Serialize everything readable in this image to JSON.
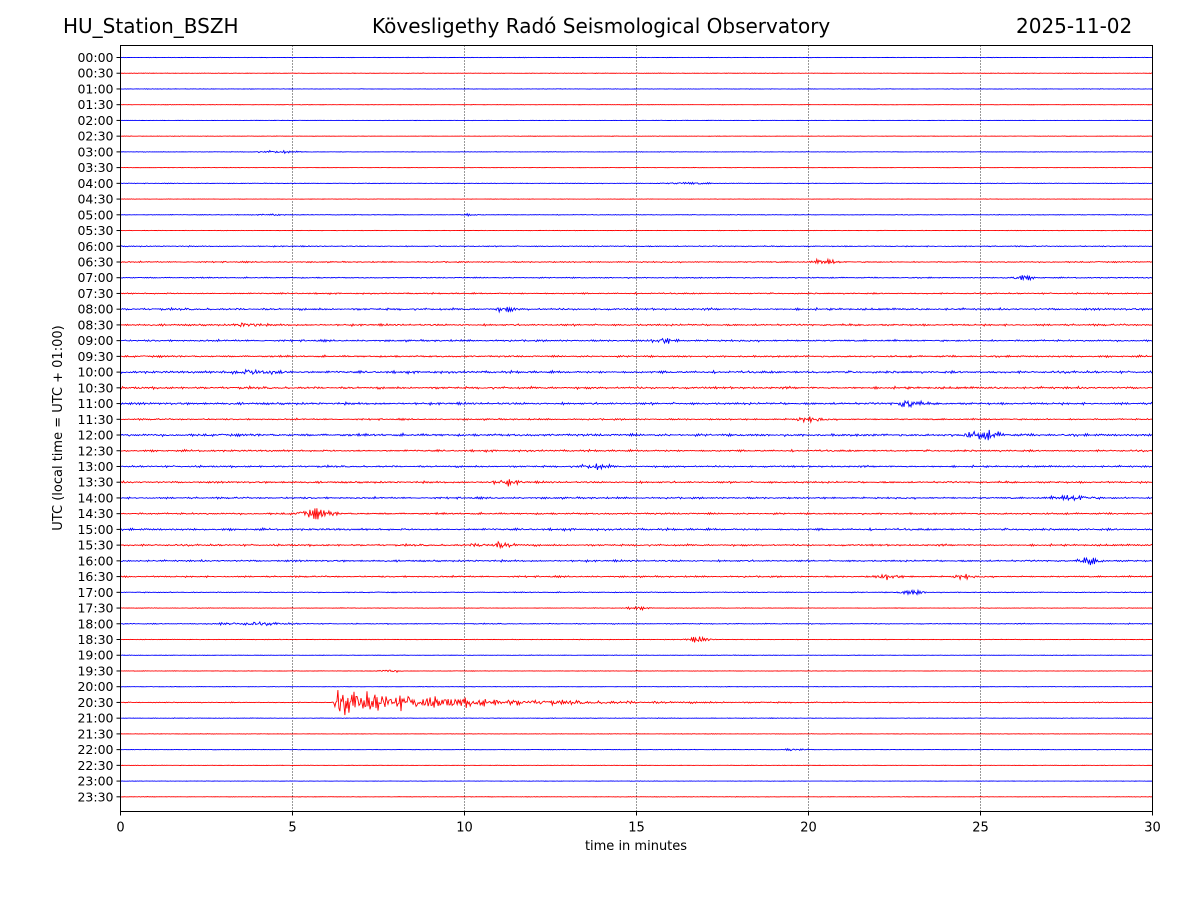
{
  "header": {
    "station": "HU_Station_BSZH",
    "observatory": "Kövesligethy Radó Seismological Observatory",
    "date": "2025-11-02"
  },
  "chart_data": {
    "type": "line",
    "title": "Kövesligethy Radó Seismological Observatory",
    "xlabel": "time in minutes",
    "ylabel": "UTC (local time = UTC + 01:00)",
    "xlim": [
      0,
      30
    ],
    "x_ticks": [
      "0",
      "5",
      "10",
      "15",
      "20",
      "25",
      "30"
    ],
    "x_tick_values": [
      0,
      5,
      10,
      15,
      20,
      25,
      30
    ],
    "grid": "vertical dotted lines at 5, 10, 15, 20, 25 minutes",
    "colors": {
      "even_row": "#0000ff",
      "odd_row": "#ff0000",
      "grid": "#000000"
    },
    "row_labels": [
      "00:00",
      "00:30",
      "01:00",
      "01:30",
      "02:00",
      "02:30",
      "03:00",
      "03:30",
      "04:00",
      "04:30",
      "05:00",
      "05:30",
      "06:00",
      "06:30",
      "07:00",
      "07:30",
      "08:00",
      "08:30",
      "09:00",
      "09:30",
      "10:00",
      "10:30",
      "11:00",
      "11:30",
      "12:00",
      "12:30",
      "13:00",
      "13:30",
      "14:00",
      "14:30",
      "15:00",
      "15:30",
      "16:00",
      "16:30",
      "17:00",
      "17:30",
      "18:00",
      "18:30",
      "19:00",
      "19:30",
      "20:00",
      "20:30",
      "21:00",
      "21:30",
      "22:00",
      "22:30",
      "23:00",
      "23:30"
    ],
    "noise_level": [
      0.5,
      0.5,
      0.5,
      0.4,
      0.4,
      0.4,
      0.5,
      0.4,
      0.6,
      0.4,
      0.7,
      0.5,
      1.1,
      1.3,
      1.2,
      1.4,
      2.2,
      2.0,
      1.9,
      1.9,
      2.5,
      2.4,
      2.4,
      1.6,
      2.6,
      2.0,
      1.9,
      2.0,
      1.9,
      1.9,
      2.2,
      2.0,
      1.9,
      1.6,
      1.0,
      0.6,
      1.0,
      0.6,
      0.5,
      0.5,
      0.5,
      0.9,
      0.6,
      0.5,
      0.6,
      0.4,
      0.4,
      0.5
    ],
    "events": [
      {
        "row": "03:00",
        "minute": 4.6,
        "amplitude": 3,
        "duration": 0.8
      },
      {
        "row": "04:00",
        "minute": 16.5,
        "amplitude": 2.5,
        "duration": 1.0
      },
      {
        "row": "05:00",
        "minute": 4.4,
        "amplitude": 3,
        "duration": 0.4
      },
      {
        "row": "05:00",
        "minute": 10.1,
        "amplitude": 3,
        "duration": 0.4
      },
      {
        "row": "06:30",
        "minute": 20.5,
        "amplitude": 7,
        "duration": 0.5
      },
      {
        "row": "07:00",
        "minute": 26.2,
        "amplitude": 6,
        "duration": 0.5
      },
      {
        "row": "08:00",
        "minute": 11.2,
        "amplitude": 6,
        "duration": 0.4
      },
      {
        "row": "08:30",
        "minute": 3.7,
        "amplitude": 5,
        "duration": 0.5
      },
      {
        "row": "09:00",
        "minute": 15.8,
        "amplitude": 6,
        "duration": 0.5
      },
      {
        "row": "10:00",
        "minute": 4.0,
        "amplitude": 6,
        "duration": 1.2
      },
      {
        "row": "11:00",
        "minute": 22.9,
        "amplitude": 10,
        "duration": 0.5
      },
      {
        "row": "11:30",
        "minute": 20.0,
        "amplitude": 5,
        "duration": 0.6
      },
      {
        "row": "12:00",
        "minute": 25.1,
        "amplitude": 9,
        "duration": 0.8
      },
      {
        "row": "13:00",
        "minute": 13.8,
        "amplitude": 6,
        "duration": 0.6
      },
      {
        "row": "13:30",
        "minute": 11.2,
        "amplitude": 6,
        "duration": 0.6
      },
      {
        "row": "14:00",
        "minute": 27.7,
        "amplitude": 7,
        "duration": 0.8
      },
      {
        "row": "14:30",
        "minute": 5.7,
        "amplitude": 11,
        "duration": 0.7
      },
      {
        "row": "15:30",
        "minute": 10.9,
        "amplitude": 6,
        "duration": 0.9
      },
      {
        "row": "16:00",
        "minute": 28.2,
        "amplitude": 7,
        "duration": 0.5
      },
      {
        "row": "16:30",
        "minute": 22.3,
        "amplitude": 6,
        "duration": 0.5
      },
      {
        "row": "16:30",
        "minute": 24.5,
        "amplitude": 5,
        "duration": 0.4
      },
      {
        "row": "17:00",
        "minute": 23.0,
        "amplitude": 7,
        "duration": 0.5
      },
      {
        "row": "17:30",
        "minute": 15.0,
        "amplitude": 4,
        "duration": 0.4
      },
      {
        "row": "18:00",
        "minute": 3.8,
        "amplitude": 4,
        "duration": 1.5
      },
      {
        "row": "18:30",
        "minute": 16.8,
        "amplitude": 6,
        "duration": 0.5
      },
      {
        "row": "19:30",
        "minute": 7.8,
        "amplitude": 3,
        "duration": 0.5
      },
      {
        "row": "20:30",
        "minute": 6.2,
        "amplitude": 34,
        "duration": 9.0
      },
      {
        "row": "22:00",
        "minute": 19.6,
        "amplitude": 3,
        "duration": 0.5
      }
    ]
  }
}
